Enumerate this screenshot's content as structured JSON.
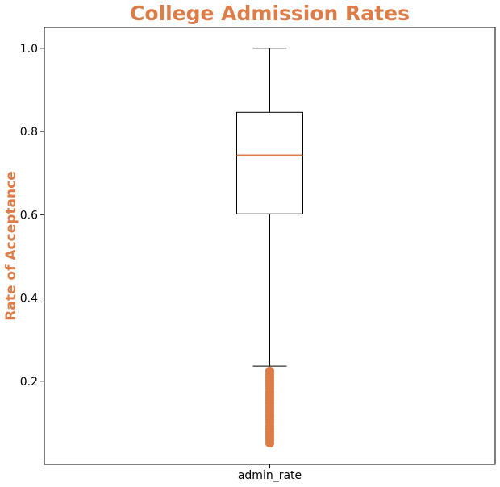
{
  "chart_data": {
    "type": "box",
    "title": "College Admission Rates",
    "xlabel": "",
    "ylabel": "Rate of Acceptance",
    "categories": [
      "admin_rate"
    ],
    "ylim": [
      0.0,
      1.05
    ],
    "yticks": [
      0.2,
      0.4,
      0.6,
      0.8,
      1.0
    ],
    "ytick_labels": [
      "0.2",
      "0.4",
      "0.6",
      "0.8",
      "1.0"
    ],
    "grid": false,
    "box": {
      "name": "admin_rate",
      "whisker_low": 0.236,
      "q1": 0.602,
      "median": 0.743,
      "q3": 0.846,
      "whisker_high": 1.0
    },
    "outliers": [
      0.051,
      0.058,
      0.065,
      0.072,
      0.078,
      0.085,
      0.092,
      0.1,
      0.107,
      0.114,
      0.12,
      0.127,
      0.134,
      0.141,
      0.148,
      0.155,
      0.161,
      0.168,
      0.175,
      0.182,
      0.189,
      0.196,
      0.203,
      0.21,
      0.217,
      0.224
    ],
    "colors": {
      "title": "#dd7c47",
      "ylabel": "#dd7c47",
      "median": "#dd7c47",
      "outliers": "#dd7c47",
      "box": "#000000"
    }
  }
}
